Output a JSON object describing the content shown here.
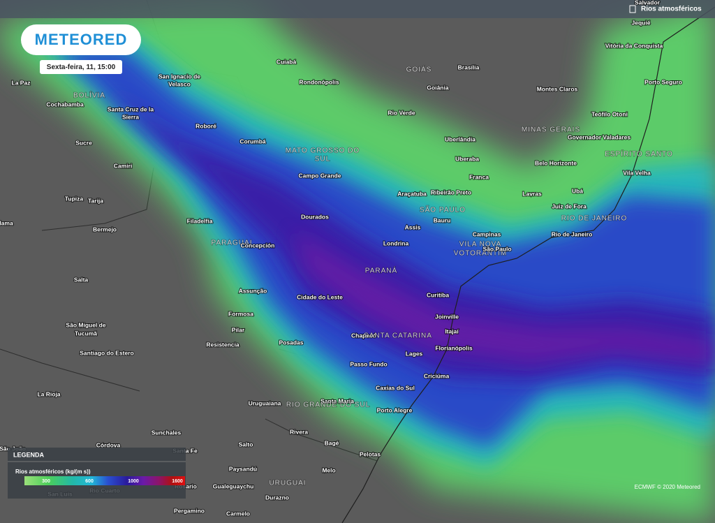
{
  "header": {
    "logo": "METEORED",
    "date": "Sexta-feira, 11, 15:00",
    "layer": "Rios atmosféricos"
  },
  "places": [
    "Salvador",
    "Jequié",
    "Vitória da Conquista",
    "Cuiabá",
    "GOIÁS",
    "Brasília",
    "La Paz",
    "San Ignacio de",
    "Velasco",
    "Rondonópolis",
    "Goiânia",
    "Montes Claros",
    "Porto Seguro",
    "BOLÍVIA",
    "Cochabamba",
    "Santa Cruz de la",
    "Sierra",
    "Rio Verde",
    "Teófilo Otoni",
    "Roboré",
    "MINAS GERAIS",
    "Uberlândia",
    "Governador Valadares",
    "Sucre",
    "Corumbá",
    "MATO GROSSO DO",
    "SUL",
    "ESPÍRITO SANTO",
    "Uberaba",
    "Belo Horizonte",
    "Camiri",
    "Campo Grande",
    "Franca",
    "Vila Velha",
    "Araçatuba",
    "Ribeirão Preto",
    "Lavras",
    "Ubá",
    "Tupiza",
    "Tarija",
    "SÃO PAULO",
    "Juiz de Fora",
    "Filadelfia",
    "Dourados",
    "Bauru",
    "RIO DE JANEIRO",
    "lama",
    "Bermejo",
    "Assis",
    "Campinas",
    "Rio de Janeiro",
    "PARAGUAI",
    "Concepción",
    "Londrina",
    "VILA NOVA",
    "VOTORANTIM",
    "São Paulo",
    "PARANÁ",
    "Salta",
    "Assunção",
    "Cidade do Leste",
    "Curitiba",
    "Formosa",
    "Joinville",
    "São Miguel de",
    "Tucumã",
    "Pilar",
    "Itajaí",
    "Chapecó",
    "SANTA CATARINA",
    "Resistencia",
    "Posadas",
    "Florianópolis",
    "Santiago do Estero",
    "Lages",
    "Passo Fundo",
    "Criciúma",
    "Caxias do Sul",
    "La Rioja",
    "Uruguaiana",
    "Santa Maria",
    "RIO GRANDE DO SUL",
    "Porto Alegre",
    "Rivera",
    "Sunchales",
    "Bagé",
    "São João",
    "Córdova",
    "Santa Fe",
    "Salto",
    "Pelotas",
    "Paysandú",
    "Melo",
    "URUGUAI",
    "Rosario",
    "Gualeguaychu",
    "Durazno",
    "San Luis",
    "Rio Cuarto",
    "Pergamino",
    "Carmelo"
  ],
  "legend": {
    "title": "LEGENDA",
    "label": "Rios atmosféricos (kg/(m s))",
    "ticks": [
      300,
      600,
      1000,
      1600
    ]
  },
  "credit": "ECMWF © 2020 Meteored"
}
